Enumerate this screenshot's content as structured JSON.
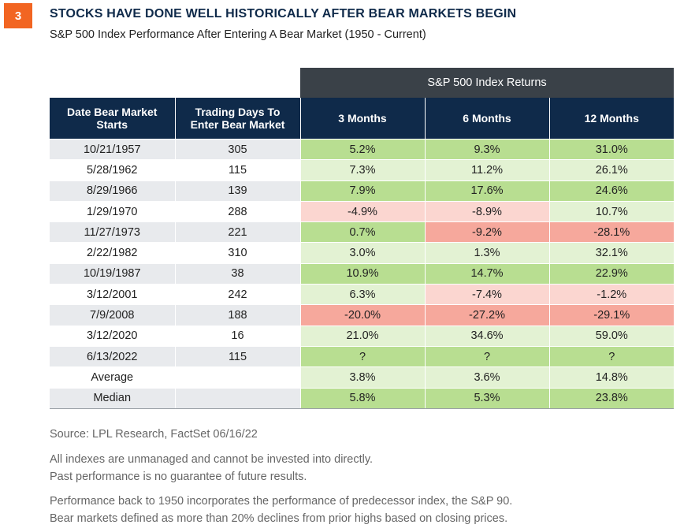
{
  "badge": "3",
  "title": "STOCKS HAVE DONE WELL HISTORICALLY AFTER BEAR MARKETS BEGIN",
  "subtitle": "S&P 500 Index Performance After Entering A Bear Market (1950 - Current)",
  "colors": {
    "dark_green": "#b8de91",
    "light_green": "#e3f2d3",
    "light_red": "#fbd6d0",
    "dark_red": "#f6a89c",
    "header_navy": "#0f2a4a",
    "group_header": "#3a4148"
  },
  "chart_data": {
    "type": "table",
    "group_header": "S&P 500 Index Returns",
    "columns": [
      "Date Bear Market Starts",
      "Trading Days To Enter Bear Market",
      "3 Months",
      "6 Months",
      "12 Months"
    ],
    "rows": [
      {
        "date": "10/21/1957",
        "days": "305",
        "cells": [
          {
            "v": "5.2%",
            "c": "dark_green"
          },
          {
            "v": "9.3%",
            "c": "dark_green"
          },
          {
            "v": "31.0%",
            "c": "dark_green"
          }
        ]
      },
      {
        "date": "5/28/1962",
        "days": "115",
        "cells": [
          {
            "v": "7.3%",
            "c": "light_green"
          },
          {
            "v": "11.2%",
            "c": "light_green"
          },
          {
            "v": "26.1%",
            "c": "light_green"
          }
        ]
      },
      {
        "date": "8/29/1966",
        "days": "139",
        "cells": [
          {
            "v": "7.9%",
            "c": "dark_green"
          },
          {
            "v": "17.6%",
            "c": "dark_green"
          },
          {
            "v": "24.6%",
            "c": "dark_green"
          }
        ]
      },
      {
        "date": "1/29/1970",
        "days": "288",
        "cells": [
          {
            "v": "-4.9%",
            "c": "light_red"
          },
          {
            "v": "-8.9%",
            "c": "light_red"
          },
          {
            "v": "10.7%",
            "c": "light_green"
          }
        ]
      },
      {
        "date": "11/27/1973",
        "days": "221",
        "cells": [
          {
            "v": "0.7%",
            "c": "dark_green"
          },
          {
            "v": "-9.2%",
            "c": "dark_red"
          },
          {
            "v": "-28.1%",
            "c": "dark_red"
          }
        ]
      },
      {
        "date": "2/22/1982",
        "days": "310",
        "cells": [
          {
            "v": "3.0%",
            "c": "light_green"
          },
          {
            "v": "1.3%",
            "c": "light_green"
          },
          {
            "v": "32.1%",
            "c": "light_green"
          }
        ]
      },
      {
        "date": "10/19/1987",
        "days": "38",
        "cells": [
          {
            "v": "10.9%",
            "c": "dark_green"
          },
          {
            "v": "14.7%",
            "c": "dark_green"
          },
          {
            "v": "22.9%",
            "c": "dark_green"
          }
        ]
      },
      {
        "date": "3/12/2001",
        "days": "242",
        "cells": [
          {
            "v": "6.3%",
            "c": "light_green"
          },
          {
            "v": "-7.4%",
            "c": "light_red"
          },
          {
            "v": "-1.2%",
            "c": "light_red"
          }
        ]
      },
      {
        "date": "7/9/2008",
        "days": "188",
        "cells": [
          {
            "v": "-20.0%",
            "c": "dark_red"
          },
          {
            "v": "-27.2%",
            "c": "dark_red"
          },
          {
            "v": "-29.1%",
            "c": "dark_red"
          }
        ]
      },
      {
        "date": "3/12/2020",
        "days": "16",
        "cells": [
          {
            "v": "21.0%",
            "c": "light_green"
          },
          {
            "v": "34.6%",
            "c": "light_green"
          },
          {
            "v": "59.0%",
            "c": "light_green"
          }
        ]
      },
      {
        "date": "6/13/2022",
        "days": "115",
        "cells": [
          {
            "v": "?",
            "c": "dark_green"
          },
          {
            "v": "?",
            "c": "dark_green"
          },
          {
            "v": "?",
            "c": "dark_green"
          }
        ]
      },
      {
        "date": "Average",
        "days": "",
        "cells": [
          {
            "v": "3.8%",
            "c": "light_green"
          },
          {
            "v": "3.6%",
            "c": "light_green"
          },
          {
            "v": "14.8%",
            "c": "light_green"
          }
        ]
      },
      {
        "date": "Median",
        "days": "",
        "cells": [
          {
            "v": "5.8%",
            "c": "dark_green"
          },
          {
            "v": "5.3%",
            "c": "dark_green"
          },
          {
            "v": "23.8%",
            "c": "dark_green"
          }
        ]
      }
    ]
  },
  "footer": {
    "source": "Source: LPL Research, FactSet  06/16/22",
    "disclaimer1": "All indexes are unmanaged and cannot be invested into directly.",
    "disclaimer2": "Past performance is no guarantee of future results.",
    "note1": "Performance back to 1950 incorporates the performance of predecessor index, the S&P 90.",
    "note2": "Bear markets defined as more than 20% declines from prior highs based on closing prices."
  }
}
